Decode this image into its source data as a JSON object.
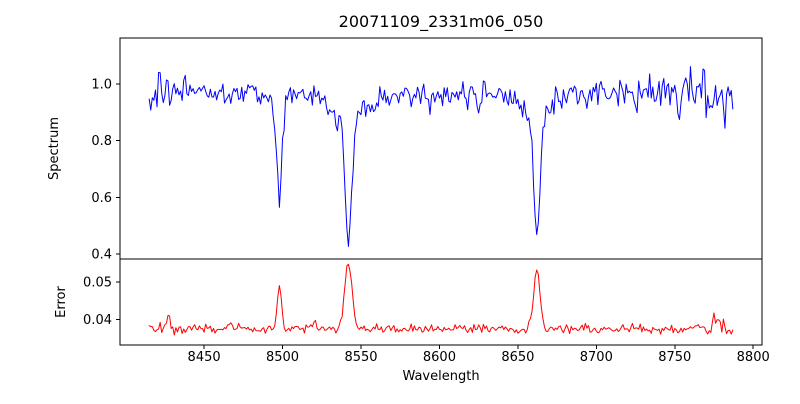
{
  "figure": {
    "title": "20071109_2331m06_050",
    "xlabel": "Wavelength",
    "background_color": "#ffffff",
    "spine_color": "#000000",
    "text_color": "#000000"
  },
  "x_axis": {
    "ticks": [
      8450,
      8500,
      8550,
      8600,
      8650,
      8700,
      8750,
      8800
    ],
    "tick_labels": [
      "8450",
      "8500",
      "8550",
      "8600",
      "8650",
      "8700",
      "8750",
      "8800"
    ]
  },
  "chart_data": [
    {
      "id": "spectrum",
      "type": "line",
      "ylabel": "Spectrum",
      "line_color": "#0000ff",
      "xlim": [
        8396.4,
        8805.6
      ],
      "ylim": [
        0.382,
        1.163
      ],
      "yticks": [
        0.4,
        0.6,
        0.8,
        1.0
      ],
      "ytick_labels": [
        "0.4",
        "0.6",
        "0.8",
        "1.0"
      ],
      "x_start": 8415,
      "x_end": 8787,
      "x_step": 1,
      "baseline": 0.965,
      "noise_sigma": 0.024,
      "noise_damped_in_lines": true,
      "edge_noise": {
        "left_boost": 0.9,
        "left_scale": 22,
        "right_boost": 1.4,
        "right_scale": 40
      },
      "seed": 20071109,
      "features": [
        {
          "center": 8498,
          "amplitude": -0.32,
          "sigma": 1.5
        },
        {
          "center": 8498,
          "amplitude": -0.05,
          "sigma": 5
        },
        {
          "center": 8542,
          "amplitude": -0.43,
          "sigma": 2.0
        },
        {
          "center": 8542,
          "amplitude": -0.1,
          "sigma": 9
        },
        {
          "center": 8662,
          "amplitude": -0.42,
          "sigma": 1.9
        },
        {
          "center": 8662,
          "amplitude": -0.08,
          "sigma": 8
        }
      ],
      "annotations": {
        "absorption_line_centers": [
          8498,
          8542,
          8662
        ],
        "absorption_line_minima": [
          0.59,
          0.435,
          0.455
        ],
        "continuum_level": 1.0
      }
    },
    {
      "id": "error",
      "type": "line",
      "ylabel": "Error",
      "line_color": "#ff0000",
      "xlim": [
        8396.4,
        8805.6
      ],
      "ylim": [
        0.0332,
        0.0562
      ],
      "yticks": [
        0.04,
        0.05
      ],
      "ytick_labels": [
        "0.04",
        "0.05"
      ],
      "x_start": 8415,
      "x_end": 8787,
      "x_step": 1,
      "baseline": 0.0375,
      "noise_sigma": 0.00055,
      "noise_damped_in_lines": false,
      "edge_noise": {
        "left_boost": 0.5,
        "left_scale": 15,
        "right_boost": 0.8,
        "right_scale": 30
      },
      "seed": 2331,
      "features": [
        {
          "center": 8427,
          "amplitude": 0.0034,
          "sigma": 1.3
        },
        {
          "center": 8466,
          "amplitude": 0.0014,
          "sigma": 1.5
        },
        {
          "center": 8498,
          "amplitude": 0.0112,
          "sigma": 1.4
        },
        {
          "center": 8520,
          "amplitude": 0.0018,
          "sigma": 1.0
        },
        {
          "center": 8542,
          "amplitude": 0.018,
          "sigma": 2.3
        },
        {
          "center": 8662,
          "amplitude": 0.016,
          "sigma": 2.0
        },
        {
          "center": 8775,
          "amplitude": 0.0028,
          "sigma": 1.2
        }
      ],
      "annotations": {
        "error_peak_centers": [
          8498,
          8542,
          8662
        ],
        "error_peak_values": [
          0.049,
          0.055,
          0.054
        ],
        "error_baseline": 0.0375
      }
    }
  ]
}
